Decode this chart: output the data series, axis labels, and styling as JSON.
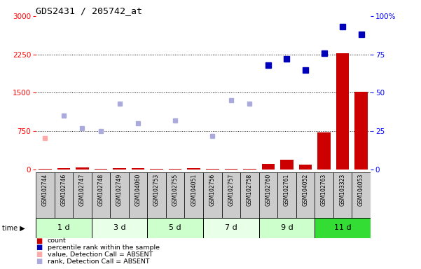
{
  "title": "GDS2431 / 205742_at",
  "samples": [
    "GSM102744",
    "GSM102746",
    "GSM102747",
    "GSM102748",
    "GSM102749",
    "GSM104060",
    "GSM102753",
    "GSM102755",
    "GSM104051",
    "GSM102756",
    "GSM102757",
    "GSM102758",
    "GSM102760",
    "GSM102761",
    "GSM104052",
    "GSM102763",
    "GSM103323",
    "GSM104053"
  ],
  "groups": [
    {
      "label": "1 d",
      "indices": [
        0,
        1,
        2
      ]
    },
    {
      "label": "3 d",
      "indices": [
        3,
        4,
        5
      ]
    },
    {
      "label": "5 d",
      "indices": [
        6,
        7,
        8
      ]
    },
    {
      "label": "7 d",
      "indices": [
        9,
        10,
        11
      ]
    },
    {
      "label": "9 d",
      "indices": [
        12,
        13,
        14
      ]
    },
    {
      "label": "11 d",
      "indices": [
        15,
        16,
        17
      ]
    }
  ],
  "group_colors": [
    "#ccffcc",
    "#e8ffe8",
    "#ccffcc",
    "#e8ffe8",
    "#ccffcc",
    "#33dd33"
  ],
  "count_values": [
    18,
    28,
    42,
    12,
    22,
    32,
    18,
    18,
    22,
    18,
    18,
    18,
    110,
    185,
    95,
    720,
    2280,
    1520
  ],
  "percentile_values": [
    null,
    null,
    null,
    null,
    null,
    null,
    null,
    null,
    null,
    null,
    null,
    null,
    68,
    72,
    65,
    76,
    93,
    88
  ],
  "absent_value_values": [
    620,
    null,
    null,
    null,
    null,
    null,
    null,
    null,
    null,
    null,
    null,
    null,
    null,
    null,
    null,
    null,
    null,
    null
  ],
  "absent_rank_values": [
    null,
    35,
    27,
    25,
    43,
    30,
    null,
    32,
    null,
    22,
    45,
    43,
    null,
    null,
    null,
    null,
    null,
    null
  ],
  "ylim_left": [
    0,
    3000
  ],
  "ylim_right": [
    0,
    100
  ],
  "yticks_left": [
    0,
    750,
    1500,
    2250,
    3000
  ],
  "yticks_right": [
    0,
    25,
    50,
    75,
    100
  ],
  "grid_color": "#000000",
  "bar_color_count": "#cc0000",
  "bar_color_percentile": "#0000bb",
  "absent_value_color": "#ffaaaa",
  "absent_rank_color": "#aaaadd",
  "sample_bg_color": "#cccccc",
  "legend_items": [
    {
      "color": "#cc0000",
      "label": "count"
    },
    {
      "color": "#0000bb",
      "label": "percentile rank within the sample"
    },
    {
      "color": "#ffaaaa",
      "label": "value, Detection Call = ABSENT"
    },
    {
      "color": "#aaaadd",
      "label": "rank, Detection Call = ABSENT"
    }
  ]
}
